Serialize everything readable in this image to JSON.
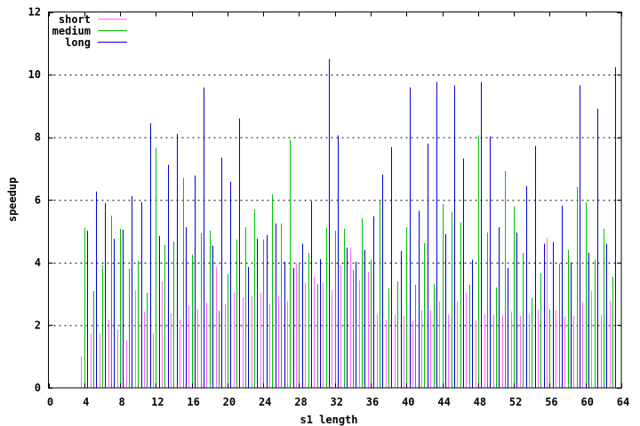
{
  "chart_data": {
    "type": "bar",
    "title": "",
    "xlabel": "s1 length",
    "ylabel": "speedup",
    "xlim": [
      0,
      64
    ],
    "ylim": [
      0,
      12
    ],
    "x_ticks": [
      0,
      4,
      8,
      12,
      16,
      20,
      24,
      28,
      32,
      36,
      40,
      44,
      48,
      52,
      56,
      60,
      64
    ],
    "y_ticks": [
      0,
      2,
      4,
      6,
      8,
      10,
      12
    ],
    "grid": "horizontal dotted",
    "legend_position": "top-left",
    "x": [
      4,
      5,
      6,
      7,
      8,
      9,
      10,
      11,
      12,
      13,
      14,
      15,
      16,
      17,
      18,
      19,
      20,
      21,
      22,
      23,
      24,
      25,
      26,
      27,
      28,
      29,
      30,
      31,
      32,
      33,
      34,
      35,
      36,
      37,
      38,
      39,
      40,
      41,
      42,
      43,
      44,
      45,
      46,
      47,
      48,
      49,
      50,
      51,
      52,
      53,
      54,
      55,
      56,
      57,
      58,
      59,
      60,
      61,
      62,
      63
    ],
    "bar_offsets": {
      "short": -0.33,
      "medium": 0,
      "long": 0.33
    },
    "series": [
      {
        "name": "short",
        "color": "#ff66ff",
        "values": [
          1.0,
          1.73,
          1.73,
          2.18,
          1.87,
          1.53,
          3.12,
          2.44,
          1.73,
          3.4,
          2.38,
          2.18,
          2.61,
          2.52,
          2.72,
          3.86,
          2.67,
          3.04,
          2.89,
          2.92,
          3.04,
          2.69,
          2.92,
          2.78,
          3.97,
          3.35,
          3.55,
          3.35,
          3.12,
          3.91,
          4.48,
          3.43,
          3.69,
          2.35,
          2.16,
          2.33,
          2.3,
          2.13,
          2.47,
          2.47,
          2.75,
          2.35,
          2.78,
          3.04,
          2.16,
          2.35,
          2.35,
          2.33,
          2.44,
          2.3,
          2.35,
          2.5,
          4.79,
          2.47,
          2.27,
          2.3,
          2.75,
          3.09,
          2.33,
          2.78
        ]
      },
      {
        "name": "medium",
        "color": "#00c000",
        "values": [
          5.11,
          3.09,
          3.91,
          5.5,
          5.08,
          3.8,
          4.06,
          3.04,
          7.66,
          4.57,
          4.68,
          6.7,
          4.26,
          4.94,
          5.02,
          2.47,
          3.63,
          4.74,
          5.13,
          5.7,
          4.74,
          6.18,
          5.25,
          7.91,
          3.97,
          4.31,
          3.32,
          5.11,
          5.02,
          5.08,
          3.77,
          5.42,
          4.09,
          5.96,
          3.18,
          3.4,
          5.13,
          3.29,
          4.62,
          3.32,
          5.87,
          5.62,
          5.28,
          3.29,
          8.06,
          4.96,
          3.21,
          6.92,
          5.79,
          4.31,
          2.87,
          3.66,
          2.5,
          3.97,
          4.4,
          6.41,
          5.93,
          4.09,
          5.08,
          3.55
        ]
      },
      {
        "name": "long",
        "color": "#0000d0",
        "values": [
          5.02,
          6.27,
          5.9,
          4.76,
          5.05,
          6.12,
          5.93,
          8.45,
          4.85,
          7.12,
          8.11,
          5.13,
          6.78,
          9.59,
          4.54,
          7.35,
          6.58,
          8.6,
          3.86,
          4.76,
          4.88,
          5.25,
          4.03,
          3.83,
          4.6,
          5.96,
          4.11,
          10.5,
          8.06,
          4.48,
          4.03,
          4.4,
          5.48,
          6.81,
          7.69,
          4.37,
          9.59,
          5.65,
          7.8,
          9.76,
          4.91,
          9.65,
          7.32,
          4.09,
          9.76,
          8.03,
          5.13,
          3.83,
          4.96,
          6.44,
          7.72,
          4.6,
          4.65,
          5.82,
          4.0,
          9.65,
          4.31,
          8.91,
          4.6,
          10.24
        ]
      }
    ]
  },
  "axes": {
    "xlabel": "s1 length",
    "ylabel": "speedup",
    "x_tick_labels": [
      "0",
      "4",
      "8",
      "12",
      "16",
      "20",
      "24",
      "28",
      "32",
      "36",
      "40",
      "44",
      "48",
      "52",
      "56",
      "60",
      "64"
    ],
    "y_tick_labels": [
      "0",
      "2",
      "4",
      "6",
      "8",
      "10",
      "12"
    ]
  },
  "legend": {
    "items": [
      {
        "label": "short",
        "color": "#ff66ff"
      },
      {
        "label": "medium",
        "color": "#00c000"
      },
      {
        "label": "long",
        "color": "#0000d0"
      }
    ]
  }
}
